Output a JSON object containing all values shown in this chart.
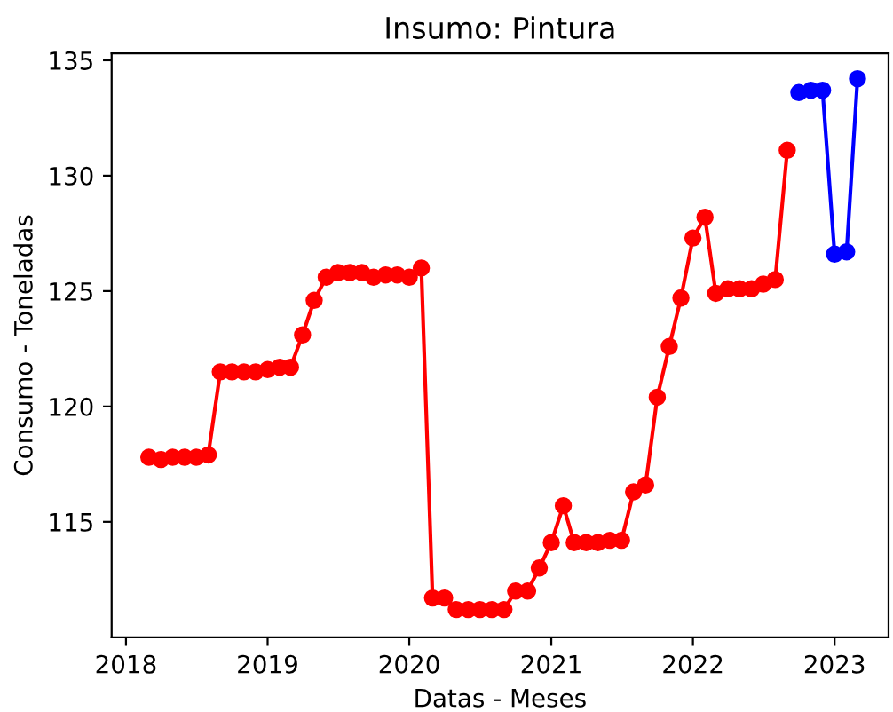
{
  "chart_data": {
    "type": "line",
    "title": "Insumo: Pintura",
    "xlabel": "Datas - Meses",
    "ylabel": "Consumo - Toneladas",
    "marker": "circle",
    "line_style": "solid",
    "grid": false,
    "legend": false,
    "xlim": [
      "2017-11-25",
      "2023-05-20"
    ],
    "xticks": [
      "2018",
      "2019",
      "2020",
      "2021",
      "2022",
      "2023"
    ],
    "ylim": [
      110.0,
      135.3
    ],
    "yticks": [
      115,
      120,
      125,
      130,
      135
    ],
    "series": [
      {
        "color": "#ff0000",
        "x": [
          "2018-03",
          "2018-04",
          "2018-05",
          "2018-06",
          "2018-07",
          "2018-08",
          "2018-09",
          "2018-10",
          "2018-11",
          "2018-12",
          "2019-01",
          "2019-02",
          "2019-03",
          "2019-04",
          "2019-05",
          "2019-06",
          "2019-07",
          "2019-08",
          "2019-09",
          "2019-10",
          "2019-11",
          "2019-12",
          "2020-01",
          "2020-02",
          "2020-03",
          "2020-04",
          "2020-05",
          "2020-06",
          "2020-07",
          "2020-08",
          "2020-09",
          "2020-10",
          "2020-11",
          "2020-12",
          "2021-01",
          "2021-02",
          "2021-03",
          "2021-04",
          "2021-05",
          "2021-06",
          "2021-07",
          "2021-08",
          "2021-09",
          "2021-10",
          "2021-11",
          "2021-12",
          "2022-01",
          "2022-02",
          "2022-03",
          "2022-04",
          "2022-05",
          "2022-06",
          "2022-07",
          "2022-08",
          "2022-09"
        ],
        "values": [
          117.8,
          117.7,
          117.8,
          117.8,
          117.8,
          117.9,
          121.5,
          121.5,
          121.5,
          121.5,
          121.6,
          121.7,
          121.7,
          123.1,
          124.6,
          125.6,
          125.8,
          125.8,
          125.8,
          125.6,
          125.7,
          125.7,
          125.6,
          126.0,
          111.7,
          111.7,
          111.2,
          111.2,
          111.2,
          111.2,
          111.2,
          112.0,
          112.0,
          113.0,
          114.1,
          115.7,
          114.1,
          114.1,
          114.1,
          114.2,
          114.2,
          116.3,
          116.6,
          120.4,
          122.6,
          124.7,
          127.3,
          128.2,
          124.9,
          125.1,
          125.1,
          125.1,
          125.3,
          125.5,
          131.1
        ]
      },
      {
        "color": "#0000ff",
        "x": [
          "2022-10",
          "2022-11",
          "2022-12",
          "2023-01",
          "2023-02",
          "2023-03"
        ],
        "values": [
          133.6,
          133.7,
          133.7,
          126.6,
          126.7,
          134.2
        ]
      }
    ]
  }
}
